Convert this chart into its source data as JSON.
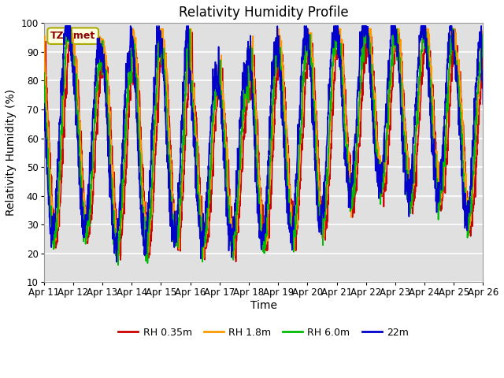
{
  "title": "Relativity Humidity Profile",
  "xlabel": "Time",
  "ylabel": "Relativity Humidity (%)",
  "ylim": [
    10,
    100
  ],
  "yticks": [
    10,
    20,
    30,
    40,
    50,
    60,
    70,
    80,
    90,
    100
  ],
  "xtick_labels": [
    "Apr 11",
    "Apr 12",
    "Apr 13",
    "Apr 14",
    "Apr 15",
    "Apr 16",
    "Apr 17",
    "Apr 18",
    "Apr 19",
    "Apr 20",
    "Apr 21",
    "Apr 22",
    "Apr 23",
    "Apr 24",
    "Apr 25",
    "Apr 26"
  ],
  "legend_labels": [
    "RH 0.35m",
    "RH 1.8m",
    "RH 6.0m",
    "22m"
  ],
  "line_colors": [
    "#cc0000",
    "#ff9900",
    "#00bb00",
    "#0000cc"
  ],
  "bg_color": "#ffffff",
  "plot_bg_color": "#e0e0e0",
  "annotation_text": "TZ_tmet",
  "annotation_color": "#8b0000",
  "annotation_bg": "#ffffe0",
  "annotation_border": "#aaaa00",
  "title_fontsize": 12,
  "axis_label_fontsize": 10,
  "tick_fontsize": 8.5
}
